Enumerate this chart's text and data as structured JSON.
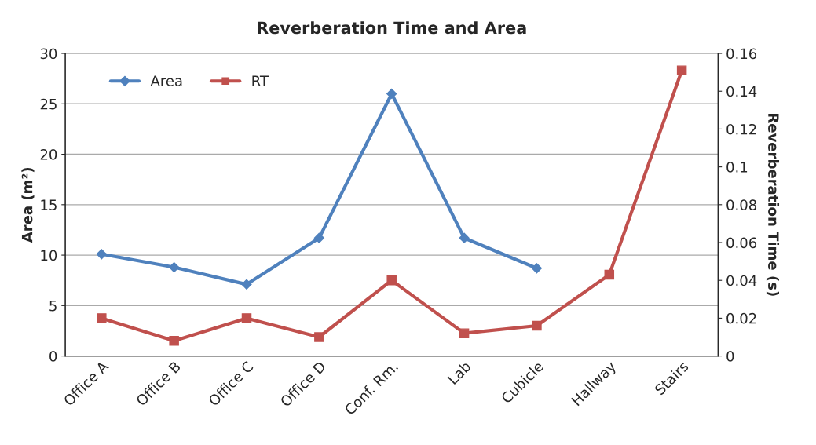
{
  "chart_data": {
    "type": "line",
    "title": "Reverberation Time and Area",
    "ylabel": "Area (m²)",
    "y2label": "Reverberation Time (s)",
    "categories": [
      "Office A",
      "Office B",
      "Office C",
      "Office D",
      "Conf. Rm.",
      "Lab",
      "Cubicle",
      "Hallway",
      "Stairs"
    ],
    "series": [
      {
        "name": "Area",
        "color": "#4f81bd",
        "marker": "diamond",
        "values": [
          10.1,
          8.8,
          7.1,
          11.7,
          26.0,
          11.7,
          8.7,
          null,
          null
        ]
      },
      {
        "name": "RT",
        "color": "#c0504d",
        "marker": "square",
        "axis": "y2",
        "values": [
          0.02,
          0.008,
          0.02,
          0.01,
          0.04,
          0.012,
          0.016,
          0.043,
          0.151
        ]
      }
    ],
    "ylim": [
      0,
      30
    ],
    "yticks": [
      0,
      5,
      10,
      15,
      20,
      25,
      30
    ],
    "y2lim": [
      0,
      0.16
    ],
    "y2ticks": [
      0,
      0.02,
      0.04,
      0.06,
      0.08,
      {
        "value": 0.1,
        "label": "0.1"
      },
      0.12,
      0.14,
      0.16
    ],
    "grid": "y",
    "legend": "top left",
    "line_style": "solid"
  }
}
